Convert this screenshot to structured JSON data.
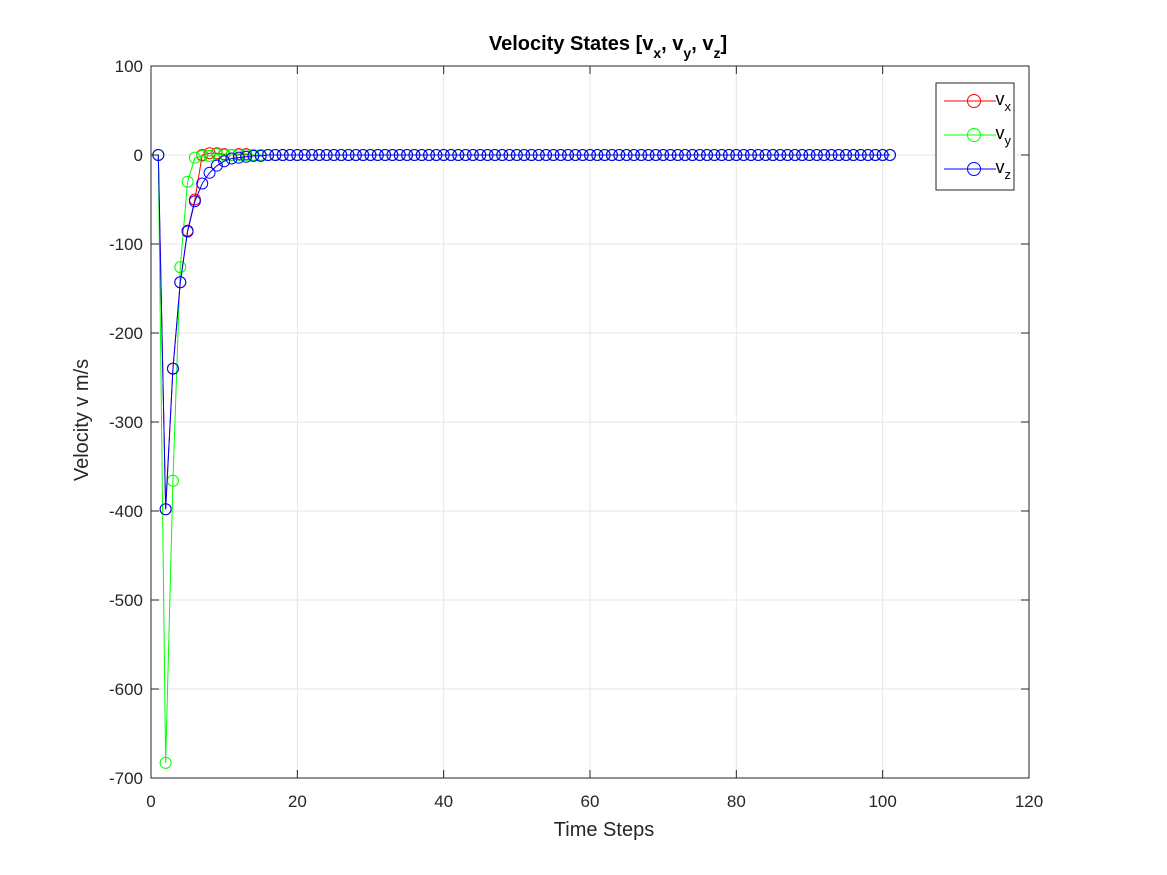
{
  "chart_data": {
    "type": "line",
    "title_main": "Velocity States [v",
    "title_parts": [
      {
        "base": "v",
        "sub": "x"
      },
      {
        "base": "v",
        "sub": "y"
      },
      {
        "base": "v",
        "sub": "z"
      }
    ],
    "title_text": "Velocity States [vx, vy, vz]",
    "xlabel": "Time Steps",
    "ylabel": "Velocity v m/s",
    "xlim": [
      0,
      120
    ],
    "ylim": [
      -700,
      100
    ],
    "xticks": [
      0,
      20,
      40,
      60,
      80,
      100,
      120
    ],
    "yticks": [
      100,
      0,
      -100,
      -200,
      -300,
      -400,
      -500,
      -600,
      -700
    ],
    "grid": true,
    "legend_position": "top-right",
    "series": [
      {
        "name": "vx",
        "label_base": "v",
        "label_sub": "x",
        "color": "#ff0000",
        "marker": "circle",
        "x_start": 1,
        "x_step": 1,
        "values": [
          0,
          -398,
          -240,
          -143,
          -85,
          -50,
          0,
          2,
          2,
          1,
          0,
          1,
          1,
          0,
          0,
          0,
          0,
          0,
          0,
          0,
          0,
          0,
          0,
          0,
          0,
          0,
          0,
          0,
          0,
          0,
          0,
          0,
          0,
          0,
          0,
          0,
          0,
          0,
          0,
          0,
          0,
          0,
          0,
          0,
          0,
          0,
          0,
          0,
          0,
          0,
          0,
          0,
          0,
          0,
          0,
          0,
          0,
          0,
          0,
          0,
          0,
          0,
          0,
          0,
          0,
          0,
          0,
          0,
          0,
          0,
          0,
          0,
          0,
          0,
          0,
          0,
          0,
          0,
          0,
          0,
          0,
          0,
          0,
          0,
          0,
          0,
          0,
          0,
          0,
          0,
          0,
          0,
          0,
          0,
          0,
          0,
          0,
          0,
          0,
          0,
          0
        ]
      },
      {
        "name": "vy",
        "label_base": "v",
        "label_sub": "y",
        "color": "#00ff00",
        "marker": "circle",
        "x_start": 1,
        "x_step": 1,
        "values": [
          0,
          -683,
          -366,
          -126,
          -30,
          -3,
          -1,
          -1,
          1,
          0,
          0,
          0,
          0,
          0,
          0,
          0,
          0,
          0,
          0,
          0,
          0,
          0,
          0,
          0,
          0,
          0,
          0,
          0,
          0,
          0,
          0,
          0,
          0,
          0,
          0,
          0,
          0,
          0,
          0,
          0,
          0,
          0,
          0,
          0,
          0,
          0,
          0,
          0,
          0,
          0,
          0,
          0,
          0,
          0,
          0,
          0,
          0,
          0,
          0,
          0,
          0,
          0,
          0,
          0,
          0,
          0,
          0,
          0,
          0,
          0,
          0,
          0,
          0,
          0,
          0,
          0,
          0,
          0,
          0,
          0,
          0,
          0,
          0,
          0,
          0,
          0,
          0,
          0,
          0,
          0,
          0,
          0,
          0,
          0,
          0,
          0,
          0,
          0,
          0,
          0,
          0
        ]
      },
      {
        "name": "vz",
        "label_base": "v",
        "label_sub": "z",
        "color": "#0000ff",
        "marker": "circle",
        "x_start": 1,
        "x_step": 1,
        "values": [
          0,
          -398,
          -240,
          -143,
          -86,
          -52,
          -32,
          -20,
          -12,
          -7,
          -4,
          -3,
          -2,
          -1,
          -1,
          0,
          0,
          0,
          0,
          0,
          0,
          0,
          0,
          0,
          0,
          0,
          0,
          0,
          0,
          0,
          0,
          0,
          0,
          0,
          0,
          0,
          0,
          0,
          0,
          0,
          0,
          0,
          0,
          0,
          0,
          0,
          0,
          0,
          0,
          0,
          0,
          0,
          0,
          0,
          0,
          0,
          0,
          0,
          0,
          0,
          0,
          0,
          0,
          0,
          0,
          0,
          0,
          0,
          0,
          0,
          0,
          0,
          0,
          0,
          0,
          0,
          0,
          0,
          0,
          0,
          0,
          0,
          0,
          0,
          0,
          0,
          0,
          0,
          0,
          0,
          0,
          0,
          0,
          0,
          0,
          0,
          0,
          0,
          0,
          0,
          0
        ]
      }
    ]
  },
  "colors": {
    "axis": "#262626",
    "grid": "#e6e6e6",
    "background": "#ffffff"
  }
}
